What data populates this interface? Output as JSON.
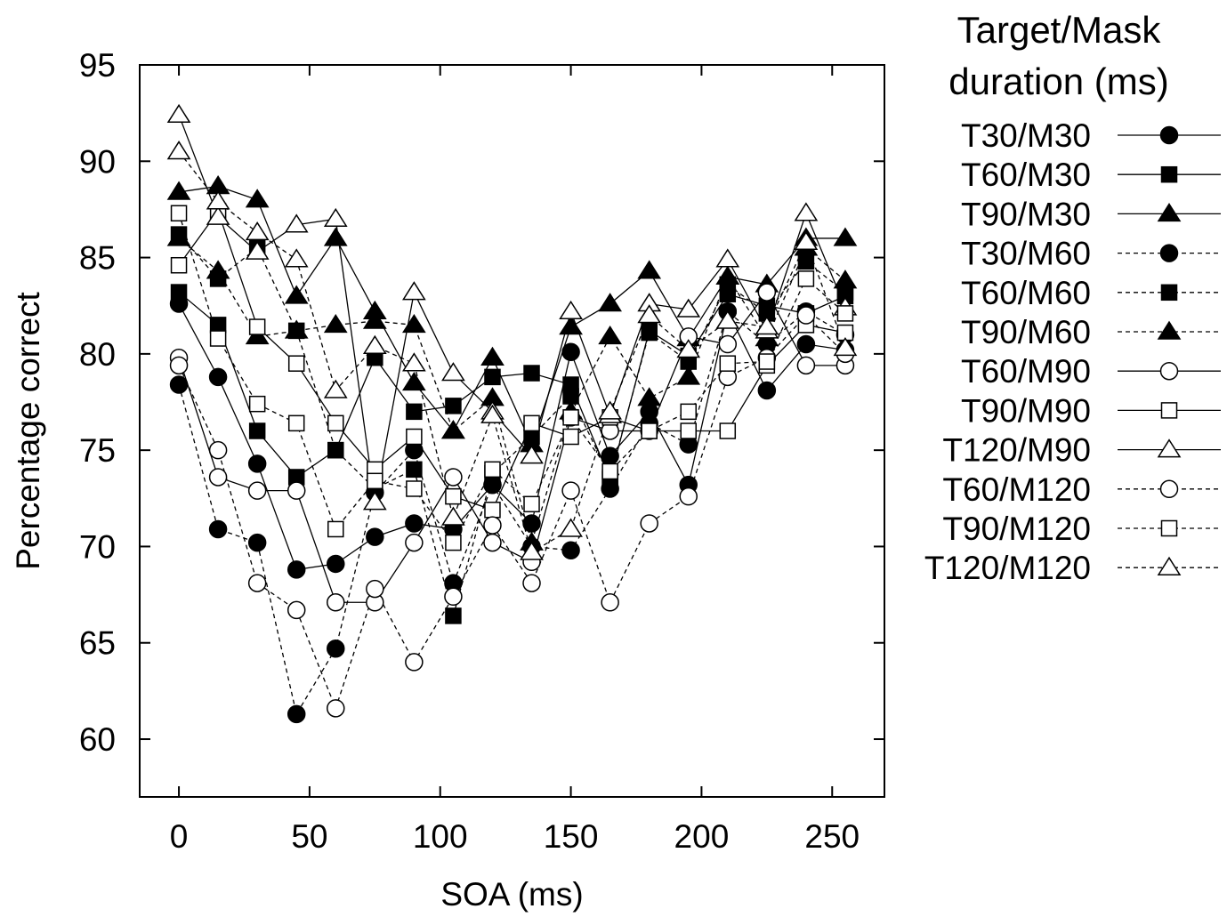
{
  "chart_data": {
    "type": "line",
    "xlabel": "SOA (ms)",
    "ylabel": "Percentage correct",
    "xlim": [
      -15,
      270
    ],
    "ylim": [
      57,
      95
    ],
    "xticks": [
      0,
      50,
      100,
      150,
      200,
      250
    ],
    "yticks": [
      60,
      65,
      70,
      75,
      80,
      85,
      90,
      95
    ],
    "grid": false,
    "legend_title": [
      "Target/Mask",
      "duration (ms)"
    ],
    "legend_placement": "right",
    "x": [
      0,
      15,
      30,
      45,
      60,
      75,
      90,
      105,
      120,
      135,
      150,
      165,
      180,
      195,
      210,
      225,
      240,
      255
    ],
    "series": [
      {
        "name": "T30/M30",
        "marker": "circle",
        "filled": true,
        "dashed": false,
        "values": [
          82.6,
          78.8,
          74.3,
          68.8,
          69.1,
          70.5,
          71.2,
          70.9,
          73.2,
          71.2,
          80.1,
          74.7,
          77.0,
          73.2,
          82.2,
          78.1,
          80.5,
          80.2
        ]
      },
      {
        "name": "T60/M30",
        "marker": "square",
        "filled": true,
        "dashed": false,
        "values": [
          83.2,
          81.5,
          76.0,
          73.6,
          75.0,
          79.8,
          77.0,
          77.3,
          78.8,
          79.0,
          78.4,
          73.5,
          81.2,
          79.9,
          83.1,
          82.5,
          82.1,
          83.0
        ]
      },
      {
        "name": "T90/M30",
        "marker": "triangle",
        "filled": true,
        "dashed": false,
        "values": [
          88.4,
          88.7,
          88.0,
          83.0,
          86.0,
          82.2,
          78.5,
          76.0,
          79.8,
          75.3,
          81.4,
          82.6,
          84.3,
          80.8,
          84.0,
          83.6,
          86.0,
          86.0
        ]
      },
      {
        "name": "T30/M60",
        "marker": "circle",
        "filled": true,
        "dashed": true,
        "values": [
          78.4,
          70.9,
          70.2,
          61.3,
          64.7,
          72.8,
          75.0,
          68.1,
          73.2,
          70.0,
          69.8,
          73.0,
          76.4,
          75.3,
          82.2,
          80.5,
          82.2,
          81.0
        ]
      },
      {
        "name": "T60/M60",
        "marker": "square",
        "filled": true,
        "dashed": true,
        "values": [
          86.2,
          83.9,
          85.5,
          81.2,
          75.0,
          73.0,
          74.0,
          66.4,
          73.8,
          75.7,
          77.8,
          73.6,
          81.1,
          79.6,
          83.6,
          82.1,
          84.8,
          83.2
        ]
      },
      {
        "name": "T90/M60",
        "marker": "triangle",
        "filled": true,
        "dashed": true,
        "values": [
          86.0,
          84.3,
          80.9,
          81.2,
          81.5,
          81.7,
          81.5,
          76.0,
          77.7,
          70.2,
          77.0,
          80.9,
          77.7,
          78.8,
          84.0,
          80.8,
          85.5,
          83.8
        ]
      },
      {
        "name": "T60/M90",
        "marker": "circle",
        "filled": false,
        "dashed": false,
        "values": [
          79.8,
          73.6,
          72.9,
          72.9,
          67.1,
          67.1,
          70.2,
          73.6,
          70.2,
          69.2,
          76.7,
          76.0,
          76.0,
          80.9,
          80.5,
          83.2,
          79.4,
          79.4
        ]
      },
      {
        "name": "T90/M90",
        "marker": "square",
        "filled": false,
        "dashed": false,
        "values": [
          84.6,
          87.4,
          81.4,
          79.5,
          76.4,
          74.0,
          75.7,
          72.6,
          71.9,
          76.4,
          75.7,
          76.7,
          76.0,
          76.0,
          76.0,
          79.4,
          81.5,
          81.1
        ]
      },
      {
        "name": "T120/M90",
        "marker": "triangle",
        "filled": false,
        "dashed": false,
        "values": [
          92.4,
          87.1,
          85.3,
          86.7,
          87.0,
          72.3,
          83.2,
          79.0,
          77.0,
          74.7,
          82.2,
          76.8,
          82.6,
          82.3,
          84.9,
          81.2,
          87.3,
          82.4
        ]
      },
      {
        "name": "T60/M120",
        "marker": "circle",
        "filled": false,
        "dashed": true,
        "values": [
          79.4,
          75.0,
          68.1,
          66.7,
          61.6,
          67.8,
          64.0,
          67.4,
          71.1,
          68.1,
          72.9,
          67.1,
          71.2,
          72.6,
          78.8,
          79.8,
          82.0,
          80.0
        ]
      },
      {
        "name": "T90/M120",
        "marker": "square",
        "filled": false,
        "dashed": true,
        "values": [
          87.3,
          80.8,
          77.4,
          76.4,
          70.9,
          73.4,
          73.0,
          70.2,
          74.0,
          72.2,
          76.7,
          73.9,
          76.0,
          77.0,
          79.5,
          79.6,
          83.9,
          82.1
        ]
      },
      {
        "name": "T120/M120",
        "marker": "triangle",
        "filled": false,
        "dashed": true,
        "values": [
          90.5,
          87.9,
          86.3,
          84.9,
          78.1,
          80.4,
          79.5,
          71.5,
          76.8,
          69.7,
          70.9,
          77.0,
          82.0,
          80.2,
          81.7,
          81.4,
          85.8,
          80.3
        ]
      }
    ]
  }
}
